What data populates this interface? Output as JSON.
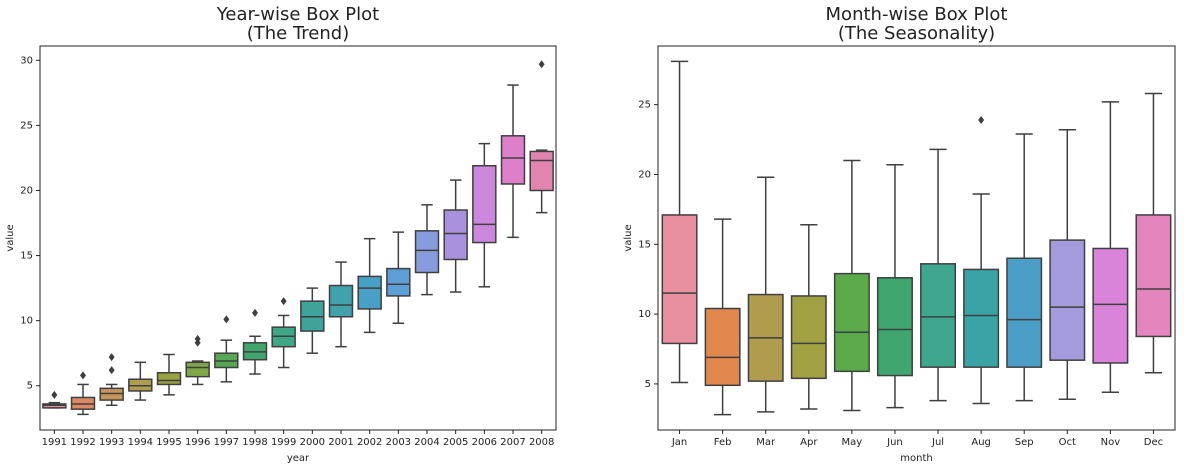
{
  "chart_data": [
    {
      "type": "box",
      "title": [
        "Year-wise Box Plot",
        "(The Trend)"
      ],
      "x_label": "year",
      "y_label": "value",
      "categories": [
        "1991",
        "1992",
        "1993",
        "1994",
        "1995",
        "1996",
        "1997",
        "1998",
        "1999",
        "2000",
        "2001",
        "2002",
        "2003",
        "2004",
        "2005",
        "2006",
        "2007",
        "2008"
      ],
      "colors": [
        "#e58e99",
        "#dc8a63",
        "#c7955b",
        "#ae9c4f",
        "#9aa142",
        "#7fa748",
        "#56a951",
        "#41a66e",
        "#3ea787",
        "#3ea39a",
        "#41a2ad",
        "#48a0c7",
        "#5c9ed5",
        "#879bdd",
        "#a891dd",
        "#ca87db",
        "#de7fca",
        "#e285ae"
      ],
      "whisker_low": [
        3.3,
        2.8,
        3.5,
        3.9,
        4.3,
        5.1,
        5.3,
        5.9,
        6.4,
        7.5,
        8.0,
        9.1,
        9.8,
        12.0,
        12.2,
        12.6,
        16.4,
        18.3
      ],
      "q1": [
        3.3,
        3.2,
        3.9,
        4.6,
        5.1,
        5.7,
        6.4,
        7.0,
        8.0,
        9.2,
        10.3,
        10.9,
        11.9,
        13.7,
        14.7,
        16.0,
        20.5,
        20.0
      ],
      "median": [
        3.5,
        3.6,
        4.4,
        5.0,
        5.4,
        6.4,
        6.9,
        7.6,
        8.8,
        10.3,
        11.2,
        12.5,
        12.8,
        15.4,
        16.7,
        17.4,
        22.5,
        22.3
      ],
      "q3": [
        3.6,
        4.1,
        4.8,
        5.5,
        6.0,
        6.8,
        7.5,
        8.3,
        9.5,
        11.5,
        12.7,
        13.4,
        14.0,
        16.9,
        18.5,
        21.9,
        24.2,
        23.0
      ],
      "whisker_high": [
        3.7,
        5.1,
        5.1,
        6.8,
        7.4,
        6.9,
        8.5,
        8.8,
        10.4,
        12.5,
        14.5,
        16.3,
        16.8,
        18.9,
        20.8,
        23.6,
        28.1,
        23.1
      ],
      "outliers": [
        [
          4.3
        ],
        [
          5.8
        ],
        [
          6.2,
          7.2
        ],
        [],
        [],
        [
          8.3,
          8.6
        ],
        [
          10.1
        ],
        [
          10.6
        ],
        [
          11.5
        ],
        [],
        [],
        [],
        [],
        [],
        [],
        [],
        [],
        [
          29.7
        ]
      ],
      "ylim": [
        1.6,
        31.1
      ],
      "yticks": [
        5,
        10,
        15,
        20,
        25,
        30
      ]
    },
    {
      "type": "box",
      "title": [
        "Month-wise Box Plot",
        "(The Seasonality)"
      ],
      "x_label": "month",
      "y_label": "value",
      "categories": [
        "Jan",
        "Feb",
        "Mar",
        "Apr",
        "May",
        "Jun",
        "Jul",
        "Aug",
        "Sep",
        "Oct",
        "Nov",
        "Dec"
      ],
      "colors": [
        "#e88fa0",
        "#e0884d",
        "#b09c4f",
        "#a1a143",
        "#5aaa4a",
        "#3ea66e",
        "#3ea78d",
        "#3aa3a6",
        "#4a9ec8",
        "#a49bdc",
        "#d983db",
        "#e486be"
      ],
      "whisker_low": [
        5.1,
        2.8,
        3.0,
        3.2,
        3.1,
        3.3,
        3.8,
        3.6,
        3.8,
        3.9,
        4.4,
        5.8
      ],
      "q1": [
        7.9,
        4.9,
        5.2,
        5.4,
        5.9,
        5.6,
        6.2,
        6.2,
        6.2,
        6.7,
        6.5,
        8.4
      ],
      "median": [
        11.5,
        6.9,
        8.3,
        7.9,
        8.7,
        8.9,
        9.8,
        9.9,
        9.6,
        10.5,
        10.7,
        11.8
      ],
      "q3": [
        17.1,
        10.4,
        11.4,
        11.3,
        12.9,
        12.6,
        13.6,
        13.2,
        14.0,
        15.3,
        14.7,
        17.1
      ],
      "whisker_high": [
        28.1,
        16.8,
        19.8,
        16.4,
        21.0,
        20.7,
        21.8,
        18.6,
        22.9,
        23.2,
        25.2,
        25.8
      ],
      "outliers": [
        [],
        [],
        [],
        [],
        [],
        [],
        [],
        [
          23.9
        ],
        [],
        [],
        [],
        []
      ],
      "ylim": [
        1.7,
        29.2
      ],
      "yticks": [
        5,
        10,
        15,
        20,
        25
      ]
    }
  ]
}
